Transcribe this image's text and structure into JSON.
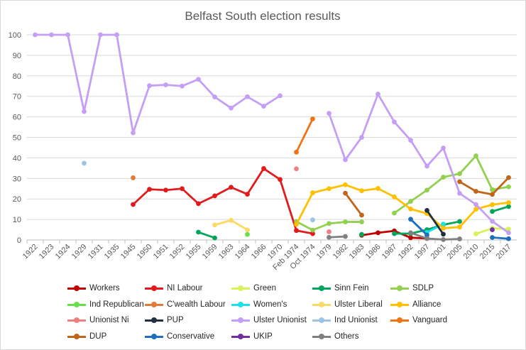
{
  "chart_data": {
    "type": "line",
    "title": "Belfast South election results",
    "xlabel": "",
    "ylabel": "",
    "ylim": [
      0,
      100
    ],
    "yticks": [
      0,
      10,
      20,
      30,
      40,
      50,
      60,
      70,
      80,
      90,
      100
    ],
    "grid": true,
    "legend_position": "bottom",
    "categories": [
      "1922",
      "1923",
      "1924",
      "1929",
      "1931",
      "1935",
      "1945",
      "1950",
      "1951",
      "1952",
      "1955",
      "1959",
      "1963",
      "1964",
      "1966",
      "1970",
      "Feb 1974",
      "Oct 1974",
      "1979",
      "1982",
      "1983",
      "1986",
      "1987",
      "1992",
      "1997",
      "2001",
      "2005",
      "2010",
      "2015",
      "2017"
    ],
    "series": [
      {
        "name": "Workers",
        "color": "#c00000",
        "values": [
          null,
          null,
          null,
          null,
          null,
          null,
          null,
          null,
          null,
          null,
          null,
          null,
          null,
          null,
          null,
          null,
          null,
          null,
          null,
          null,
          2.3,
          3.5,
          4.4,
          1.1,
          0.8,
          null,
          null,
          null,
          null,
          null
        ]
      },
      {
        "name": "NI Labour",
        "color": "#e31a1c",
        "values": [
          null,
          null,
          null,
          null,
          null,
          null,
          17.3,
          24.7,
          24.3,
          25,
          17.7,
          21.5,
          25.7,
          22.3,
          34.8,
          29.5,
          4.6,
          3.1,
          null,
          null,
          null,
          null,
          null,
          null,
          null,
          null,
          null,
          null,
          null,
          null
        ]
      },
      {
        "name": "Green",
        "color": "#d9f25a",
        "values": [
          null,
          null,
          null,
          null,
          null,
          null,
          null,
          null,
          null,
          null,
          null,
          null,
          null,
          null,
          null,
          null,
          null,
          null,
          null,
          null,
          null,
          null,
          null,
          null,
          null,
          null,
          null,
          3,
          5.7,
          5.3
        ]
      },
      {
        "name": "Sinn Fein",
        "color": "#00a65a",
        "values": [
          null,
          null,
          null,
          null,
          null,
          null,
          null,
          null,
          null,
          null,
          3.8,
          1,
          null,
          null,
          null,
          null,
          null,
          null,
          null,
          null,
          2.7,
          null,
          3.1,
          3.1,
          5,
          7.4,
          9,
          null,
          13.9,
          16.3
        ]
      },
      {
        "name": "SDLP",
        "color": "#92d050",
        "values": [
          null,
          null,
          null,
          null,
          null,
          null,
          null,
          null,
          null,
          null,
          null,
          null,
          null,
          null,
          null,
          null,
          9,
          4.8,
          8,
          8.8,
          8.8,
          null,
          13.1,
          18.8,
          24.3,
          30.6,
          32.3,
          41,
          24.5,
          25.9
        ]
      },
      {
        "name": "Ind Republican",
        "color": "#66e04a",
        "values": [
          null,
          null,
          null,
          null,
          null,
          null,
          null,
          null,
          null,
          null,
          null,
          null,
          null,
          2.7,
          null,
          null,
          null,
          null,
          null,
          null,
          null,
          null,
          null,
          null,
          null,
          null,
          null,
          null,
          null,
          null
        ]
      },
      {
        "name": "C'wealth Labour",
        "color": "#e07b39",
        "values": [
          null,
          null,
          null,
          null,
          null,
          null,
          30.3,
          null,
          null,
          null,
          null,
          null,
          null,
          null,
          null,
          null,
          null,
          null,
          null,
          null,
          null,
          null,
          null,
          null,
          null,
          null,
          null,
          null,
          null,
          null
        ]
      },
      {
        "name": "Women's",
        "color": "#1fe0e8",
        "values": [
          null,
          null,
          null,
          null,
          null,
          null,
          null,
          null,
          null,
          null,
          null,
          null,
          null,
          null,
          null,
          null,
          null,
          null,
          null,
          null,
          null,
          null,
          null,
          null,
          3.7,
          7.7,
          null,
          null,
          null,
          null
        ]
      },
      {
        "name": "Ulster Liberal",
        "color": "#ffd966",
        "values": [
          null,
          null,
          null,
          null,
          null,
          null,
          null,
          null,
          null,
          null,
          null,
          7.3,
          9.6,
          4.9,
          null,
          null,
          null,
          null,
          null,
          null,
          null,
          null,
          null,
          null,
          null,
          null,
          null,
          null,
          null,
          null
        ]
      },
      {
        "name": "Alliance",
        "color": "#ffc000",
        "values": [
          null,
          null,
          null,
          null,
          null,
          null,
          null,
          null,
          null,
          null,
          null,
          null,
          null,
          null,
          null,
          null,
          7.6,
          23,
          25,
          26.9,
          24,
          25.1,
          21,
          15.1,
          12.9,
          5.7,
          6.3,
          15,
          17.2,
          18.2
        ]
      },
      {
        "name": "Unionist Ni",
        "color": "#f08080",
        "values": [
          null,
          null,
          null,
          null,
          null,
          null,
          null,
          null,
          null,
          null,
          null,
          null,
          null,
          null,
          null,
          null,
          34.7,
          null,
          4,
          null,
          null,
          null,
          null,
          null,
          null,
          null,
          null,
          null,
          null,
          null
        ]
      },
      {
        "name": "PUP",
        "color": "#203040",
        "values": [
          null,
          null,
          null,
          null,
          null,
          null,
          null,
          null,
          null,
          null,
          null,
          null,
          null,
          null,
          null,
          null,
          null,
          null,
          null,
          null,
          null,
          null,
          null,
          null,
          14.4,
          2.8,
          null,
          null,
          null,
          null
        ]
      },
      {
        "name": "Ulster Unionist",
        "color": "#c59ff5",
        "values": [
          100,
          100,
          100,
          62.6,
          100,
          100,
          52.2,
          75.2,
          75.6,
          75,
          78.3,
          69.7,
          64.3,
          69.8,
          65.2,
          70.3,
          null,
          null,
          61.7,
          39.1,
          50,
          71.1,
          57.5,
          48.6,
          36,
          44.8,
          22.7,
          17.3,
          9.1,
          3.5
        ]
      },
      {
        "name": "Ind Unionist",
        "color": "#9dc3e6",
        "values": [
          null,
          null,
          null,
          37.4,
          null,
          null,
          null,
          null,
          null,
          null,
          null,
          null,
          null,
          null,
          null,
          null,
          null,
          9.8,
          null,
          null,
          null,
          null,
          null,
          null,
          null,
          null,
          null,
          null,
          null,
          null
        ]
      },
      {
        "name": "Vanguard",
        "color": "#f07314",
        "values": [
          null,
          null,
          null,
          null,
          null,
          null,
          null,
          null,
          null,
          null,
          null,
          null,
          null,
          null,
          null,
          null,
          42.8,
          59,
          null,
          null,
          null,
          null,
          null,
          null,
          null,
          null,
          null,
          null,
          null,
          null
        ]
      },
      {
        "name": "DUP",
        "color": "#c0651a",
        "values": [
          null,
          null,
          null,
          null,
          null,
          null,
          null,
          null,
          null,
          null,
          null,
          null,
          null,
          null,
          null,
          null,
          null,
          null,
          null,
          22.8,
          12.1,
          null,
          null,
          null,
          null,
          null,
          28.4,
          23.7,
          22.2,
          30.4
        ]
      },
      {
        "name": "Conservative",
        "color": "#1f6fbf",
        "values": [
          null,
          null,
          null,
          null,
          null,
          null,
          null,
          null,
          null,
          null,
          null,
          null,
          null,
          null,
          null,
          null,
          null,
          null,
          null,
          null,
          null,
          null,
          null,
          10.1,
          2.4,
          null,
          null,
          null,
          1.2,
          0.6
        ]
      },
      {
        "name": "UKIP",
        "color": "#7030a0",
        "values": [
          null,
          null,
          null,
          null,
          null,
          null,
          null,
          null,
          null,
          null,
          null,
          null,
          null,
          null,
          null,
          null,
          null,
          null,
          null,
          null,
          null,
          null,
          null,
          null,
          null,
          null,
          null,
          null,
          5,
          null
        ]
      },
      {
        "name": "Others",
        "color": "#808080",
        "values": [
          null,
          null,
          null,
          null,
          null,
          null,
          null,
          null,
          null,
          null,
          null,
          null,
          null,
          null,
          null,
          null,
          null,
          null,
          1.3,
          1.7,
          null,
          null,
          null,
          3.5,
          0.7,
          0.2,
          0.5,
          null,
          null,
          null
        ]
      }
    ]
  }
}
